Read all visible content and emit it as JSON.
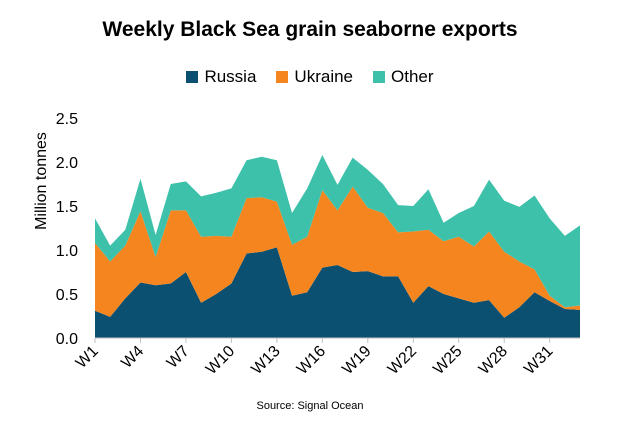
{
  "chart_data": {
    "type": "area",
    "stacked": true,
    "title": "Weekly Black Sea grain seaborne exports",
    "ylabel": "Million tonnes",
    "xlabel": "",
    "source": "Source: Signal Ocean",
    "ylim": [
      0,
      2.5
    ],
    "yticks": [
      "0.0",
      "0.5",
      "1.0",
      "1.5",
      "2.0",
      "2.5"
    ],
    "xtick_labels": [
      "W1",
      "W4",
      "W7",
      "W10",
      "W13",
      "W16",
      "W19",
      "W22",
      "W25",
      "W28",
      "W31"
    ],
    "xtick_weeks": [
      1,
      4,
      7,
      10,
      13,
      16,
      19,
      22,
      25,
      28,
      31
    ],
    "legend_position": "top",
    "x": [
      1,
      2,
      3,
      4,
      5,
      6,
      7,
      8,
      9,
      10,
      11,
      12,
      13,
      14,
      15,
      16,
      17,
      18,
      19,
      20,
      21,
      22,
      23,
      24,
      25,
      26,
      27,
      28,
      29,
      30,
      31,
      32,
      33
    ],
    "series": [
      {
        "name": "Russia",
        "color": "#0b4f71",
        "values": [
          0.31,
          0.24,
          0.45,
          0.63,
          0.6,
          0.62,
          0.75,
          0.4,
          0.5,
          0.62,
          0.96,
          0.98,
          1.03,
          0.48,
          0.52,
          0.8,
          0.83,
          0.75,
          0.76,
          0.7,
          0.7,
          0.4,
          0.59,
          0.5,
          0.45,
          0.4,
          0.43,
          0.23,
          0.35,
          0.52,
          0.42,
          0.33,
          0.32
        ]
      },
      {
        "name": "Ukraine",
        "color": "#f5861f",
        "values": [
          0.77,
          0.63,
          0.6,
          0.81,
          0.32,
          0.83,
          0.7,
          0.75,
          0.66,
          0.53,
          0.63,
          0.62,
          0.52,
          0.58,
          0.63,
          0.88,
          0.62,
          0.97,
          0.72,
          0.72,
          0.5,
          0.81,
          0.64,
          0.6,
          0.7,
          0.64,
          0.78,
          0.75,
          0.52,
          0.26,
          0.06,
          0.02,
          0.05
        ]
      },
      {
        "name": "Other",
        "color": "#3ec1aa",
        "values": [
          0.28,
          0.18,
          0.18,
          0.37,
          0.25,
          0.3,
          0.33,
          0.46,
          0.49,
          0.55,
          0.43,
          0.46,
          0.47,
          0.36,
          0.55,
          0.4,
          0.29,
          0.33,
          0.43,
          0.33,
          0.31,
          0.29,
          0.46,
          0.21,
          0.27,
          0.46,
          0.59,
          0.58,
          0.62,
          0.84,
          0.88,
          0.81,
          0.91
        ]
      }
    ]
  }
}
